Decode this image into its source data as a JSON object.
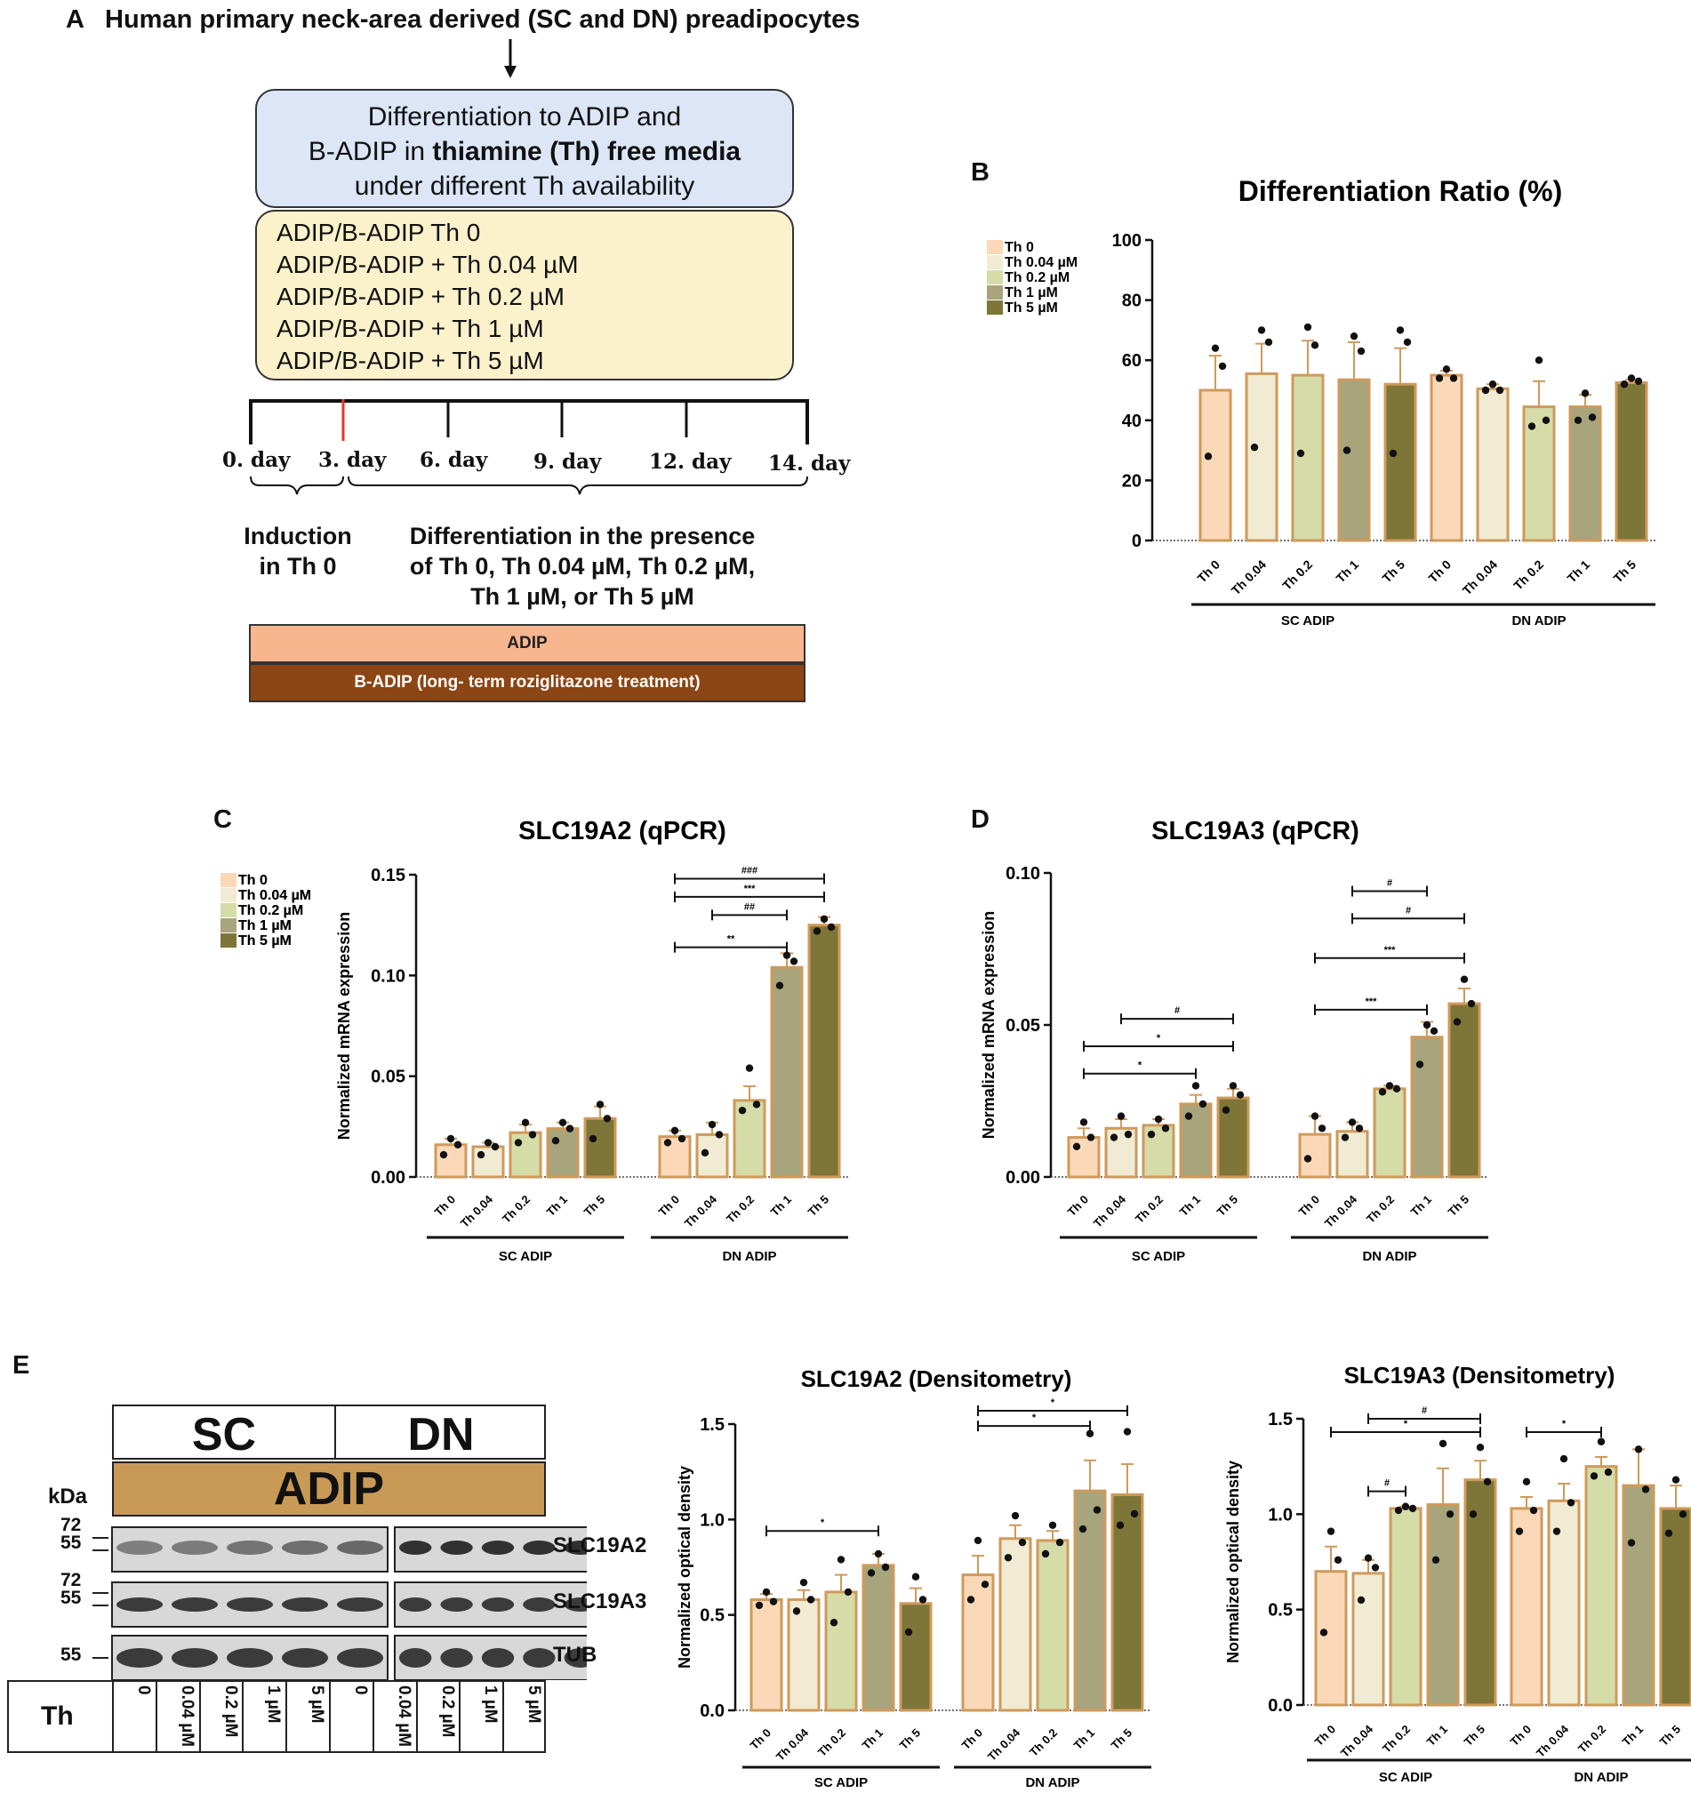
{
  "panelA": {
    "letter": "A",
    "title": "Human primary neck-area derived (SC and DN) preadipocytes",
    "blue_box": {
      "line1": "Differentiation to ADIP and",
      "line2_pre": "B-ADIP in ",
      "line2_bold": "thiamine (Th) free media",
      "line3": "under different Th availability"
    },
    "conditions": [
      "ADIP/B-ADIP Th 0",
      "ADIP/B-ADIP + Th 0.04 µM",
      "ADIP/B-ADIP + Th 0.2 µM",
      "ADIP/B-ADIP + Th 1 µM",
      "ADIP/B-ADIP + Th 5 µM"
    ],
    "days": [
      "0. day",
      "3. day",
      "6. day",
      "9. day",
      "12. day",
      "14. day"
    ],
    "induction": [
      "Induction",
      "in Th 0"
    ],
    "differentiation": [
      "Differentiation in the presence",
      "of Th 0, Th 0.04 µM, Th 0.2 µM,",
      "Th 1 µM, or Th 5 µM"
    ],
    "band_adip": "ADIP",
    "band_badip": "B-ADIP (long- term roziglitazone treatment)",
    "colors": {
      "blue": "#dce6f7",
      "yellow": "#fbf2cb",
      "adip": "#f7b68e",
      "badip": "#8c4514",
      "red_tick": "#e03a2a"
    }
  },
  "palette": [
    "#fbd9b8",
    "#f0ebd2",
    "#d5dca8",
    "#a8a47c",
    "#7e7538"
  ],
  "bar_outline": "#cf9a5b",
  "legend": [
    "Th 0",
    "Th 0.04 µM",
    "Th 0.2 µM",
    "Th 1 µM",
    "Th 5 µM"
  ],
  "chart_data": [
    {
      "id": "B",
      "letter": "B",
      "type": "bar",
      "title": "Differentiation Ratio (%)",
      "ylabel": "",
      "ylim": [
        0,
        100
      ],
      "yticks": [
        "0",
        "20",
        "40",
        "60",
        "80",
        "100"
      ],
      "categories": [
        "Th 0",
        "Th 0.04",
        "Th 0.2",
        "Th 1",
        "Th 5"
      ],
      "groups": [
        "SC  ADIP",
        "DN ADIP"
      ],
      "series": [
        {
          "name": "SC ADIP",
          "values": [
            50,
            55.5,
            55,
            53.5,
            52
          ],
          "errors": [
            11.5,
            10,
            11.5,
            12.5,
            12
          ],
          "points": [
            [
              64,
              58,
              28
            ],
            [
              70,
              66,
              31
            ],
            [
              71,
              65,
              29
            ],
            [
              68,
              63,
              30
            ],
            [
              70,
              66,
              29
            ]
          ]
        },
        {
          "name": "DN ADIP",
          "values": [
            55,
            50.5,
            44.5,
            44.5,
            52.5
          ],
          "errors": [
            1.5,
            1.5,
            8.5,
            4,
            1
          ],
          "points": [
            [
              57,
              54,
              54
            ],
            [
              52,
              50,
              50
            ],
            [
              60,
              40,
              38
            ],
            [
              49,
              41,
              40
            ],
            [
              54,
              53,
              52
            ]
          ]
        }
      ],
      "brackets": []
    },
    {
      "id": "C",
      "letter": "C",
      "type": "bar",
      "title": "SLC19A2 (qPCR)",
      "ylabel": "Normalized mRNA expression",
      "ylim": [
        0,
        0.15
      ],
      "yticks": [
        "0.00",
        "0.05",
        "0.10",
        "0.15"
      ],
      "categories": [
        "Th 0",
        "Th 0.04",
        "Th 0.2",
        "Th 1",
        "Th 5"
      ],
      "groups": [
        "SC ADIP",
        "DN ADIP"
      ],
      "series": [
        {
          "name": "SC ADIP",
          "values": [
            0.016,
            0.015,
            0.022,
            0.024,
            0.029
          ],
          "errors": [
            0.003,
            0.002,
            0.004,
            0.003,
            0.006
          ],
          "points": [
            [
              0.019,
              0.016,
              0.011
            ],
            [
              0.017,
              0.015,
              0.011
            ],
            [
              0.027,
              0.021,
              0.017
            ],
            [
              0.027,
              0.024,
              0.018
            ],
            [
              0.036,
              0.029,
              0.019
            ]
          ]
        },
        {
          "name": "DN ADIP",
          "values": [
            0.02,
            0.021,
            0.038,
            0.104,
            0.125
          ],
          "errors": [
            0.003,
            0.006,
            0.007,
            0.007,
            0.004
          ],
          "points": [
            [
              0.023,
              0.019,
              0.017
            ],
            [
              0.026,
              0.021,
              0.012
            ],
            [
              0.054,
              0.036,
              0.033
            ],
            [
              0.11,
              0.107,
              0.095
            ],
            [
              0.128,
              0.124,
              0.122
            ]
          ]
        }
      ],
      "brackets": [
        {
          "from": [
            1,
            0
          ],
          "to": [
            1,
            4
          ],
          "label": "###",
          "level": 0.148
        },
        {
          "from": [
            1,
            0
          ],
          "to": [
            1,
            4
          ],
          "label": "***",
          "level": 0.139
        },
        {
          "from": [
            1,
            1
          ],
          "to": [
            1,
            3
          ],
          "label": "##",
          "level": 0.13
        },
        {
          "from": [
            1,
            0
          ],
          "to": [
            1,
            3
          ],
          "label": "**",
          "level": 0.114
        }
      ]
    },
    {
      "id": "D",
      "letter": "D",
      "type": "bar",
      "title": "SLC19A3 (qPCR)",
      "ylabel": "Normalized mRNA expression",
      "ylim": [
        0,
        0.1
      ],
      "yticks": [
        "0.00",
        "0.05",
        "0.10"
      ],
      "categories": [
        "Th 0",
        "Th 0.04",
        "Th 0.2",
        "Th 1",
        "Th 5"
      ],
      "groups": [
        "SC ADIP",
        "DN ADIP"
      ],
      "series": [
        {
          "name": "SC ADIP",
          "values": [
            0.013,
            0.016,
            0.017,
            0.024,
            0.026
          ],
          "errors": [
            0.003,
            0.003,
            0.002,
            0.003,
            0.003
          ],
          "points": [
            [
              0.018,
              0.013,
              0.01
            ],
            [
              0.02,
              0.014,
              0.013
            ],
            [
              0.019,
              0.016,
              0.014
            ],
            [
              0.03,
              0.024,
              0.02
            ],
            [
              0.03,
              0.027,
              0.022
            ]
          ]
        },
        {
          "name": "DN ADIP",
          "values": [
            0.014,
            0.015,
            0.029,
            0.046,
            0.057
          ],
          "errors": [
            0.006,
            0.003,
            0.001,
            0.005,
            0.005
          ],
          "points": [
            [
              0.02,
              0.016,
              0.006
            ],
            [
              0.018,
              0.016,
              0.013
            ],
            [
              0.03,
              0.029,
              0.028
            ],
            [
              0.05,
              0.048,
              0.037
            ],
            [
              0.065,
              0.057,
              0.051
            ]
          ]
        }
      ],
      "brackets": [
        {
          "from": [
            1,
            1
          ],
          "to": [
            1,
            3
          ],
          "label": "#",
          "level": 0.094
        },
        {
          "from": [
            1,
            1
          ],
          "to": [
            1,
            4
          ],
          "label": "#",
          "level": 0.085
        },
        {
          "from": [
            1,
            0
          ],
          "to": [
            1,
            4
          ],
          "label": "***",
          "level": 0.072
        },
        {
          "from": [
            1,
            0
          ],
          "to": [
            1,
            3
          ],
          "label": "***",
          "level": 0.055
        },
        {
          "from": [
            0,
            1
          ],
          "to": [
            0,
            4
          ],
          "label": "#",
          "level": 0.052
        },
        {
          "from": [
            0,
            0
          ],
          "to": [
            0,
            4
          ],
          "label": "*",
          "level": 0.043
        },
        {
          "from": [
            0,
            0
          ],
          "to": [
            0,
            3
          ],
          "label": "*",
          "level": 0.034
        }
      ]
    },
    {
      "id": "E1",
      "letter": "",
      "type": "bar",
      "title": "SLC19A2 (Densitometry)",
      "ylabel": "Normalized optical density",
      "ylim": [
        0,
        1.5
      ],
      "yticks": [
        "0.0",
        "0.5",
        "1.0",
        "1.5"
      ],
      "categories": [
        "Th 0",
        "Th 0.04",
        "Th 0.2",
        "Th 1",
        "Th 5"
      ],
      "groups": [
        "SC ADIP",
        "DN ADIP"
      ],
      "series": [
        {
          "name": "SC ADIP",
          "values": [
            0.58,
            0.58,
            0.62,
            0.76,
            0.56
          ],
          "errors": [
            0.03,
            0.05,
            0.09,
            0.06,
            0.08
          ],
          "points": [
            [
              0.62,
              0.57,
              0.55
            ],
            [
              0.67,
              0.58,
              0.52
            ],
            [
              0.79,
              0.62,
              0.46
            ],
            [
              0.82,
              0.75,
              0.72
            ],
            [
              0.7,
              0.58,
              0.41
            ]
          ]
        },
        {
          "name": "DN ADIP",
          "values": [
            0.71,
            0.9,
            0.89,
            1.15,
            1.13
          ],
          "errors": [
            0.1,
            0.07,
            0.05,
            0.16,
            0.16
          ],
          "points": [
            [
              0.89,
              0.66,
              0.58
            ],
            [
              1.02,
              0.88,
              0.8
            ],
            [
              0.97,
              0.88,
              0.82
            ],
            [
              1.45,
              1.05,
              0.95
            ],
            [
              1.46,
              1.03,
              0.97
            ]
          ]
        }
      ],
      "brackets": [
        {
          "from": [
            1,
            0
          ],
          "to": [
            1,
            4
          ],
          "label": "*",
          "level": 1.57
        },
        {
          "from": [
            1,
            0
          ],
          "to": [
            1,
            3
          ],
          "label": "*",
          "level": 1.49
        },
        {
          "from": [
            0,
            0
          ],
          "to": [
            0,
            3
          ],
          "label": "*",
          "level": 0.94
        }
      ]
    },
    {
      "id": "E2",
      "letter": "",
      "type": "bar",
      "title": "SLC19A3 (Densitometry)",
      "ylabel": "Normalized optical density",
      "ylim": [
        0,
        1.5
      ],
      "yticks": [
        "0.0",
        "0.5",
        "1.0",
        "1.5"
      ],
      "categories": [
        "Th 0",
        "Th 0.04",
        "Th 0.2",
        "Th 1",
        "Th 5"
      ],
      "groups": [
        "SC ADIP",
        "DN ADIP"
      ],
      "series": [
        {
          "name": "SC ADIP",
          "values": [
            0.7,
            0.69,
            1.03,
            1.05,
            1.18
          ],
          "errors": [
            0.13,
            0.07,
            0.01,
            0.19,
            0.1
          ],
          "points": [
            [
              0.91,
              0.76,
              0.38
            ],
            [
              0.77,
              0.72,
              0.55
            ],
            [
              1.04,
              1.03,
              1.02
            ],
            [
              1.37,
              1.0,
              0.76
            ],
            [
              1.35,
              1.17,
              1.0
            ]
          ]
        },
        {
          "name": "DN ADIP",
          "values": [
            1.03,
            1.07,
            1.25,
            1.15,
            1.03
          ],
          "errors": [
            0.06,
            0.09,
            0.05,
            0.19,
            0.12
          ],
          "points": [
            [
              1.17,
              1.02,
              0.91
            ],
            [
              1.29,
              1.06,
              0.91
            ],
            [
              1.38,
              1.22,
              1.2
            ],
            [
              1.34,
              1.13,
              0.85
            ],
            [
              1.18,
              1.0,
              0.9
            ]
          ]
        }
      ],
      "brackets": [
        {
          "from": [
            0,
            1
          ],
          "to": [
            0,
            4
          ],
          "label": "#",
          "level": 1.5
        },
        {
          "from": [
            0,
            0
          ],
          "to": [
            0,
            4
          ],
          "label": "*",
          "level": 1.43
        },
        {
          "from": [
            1,
            0
          ],
          "to": [
            1,
            2
          ],
          "label": "*",
          "level": 1.43
        },
        {
          "from": [
            0,
            1
          ],
          "to": [
            0,
            2
          ],
          "label": "#",
          "level": 1.12
        }
      ]
    }
  ],
  "panelE": {
    "letter": "E",
    "blot": {
      "sc": "SC",
      "dn": "DN",
      "adip": "ADIP",
      "kda": "kDa",
      "rows": [
        {
          "label": "SLC19A2",
          "markers": [
            "72",
            "55"
          ]
        },
        {
          "label": "SLC19A3",
          "markers": [
            "72",
            "55"
          ]
        },
        {
          "label": "TUB",
          "markers": [
            "55"
          ]
        }
      ],
      "th_label": "Th",
      "lanes": [
        "0",
        "0.04 µM",
        "0.2 µM",
        "1 µM",
        "5 µM",
        "0",
        "0.04 µM",
        "0.2 µM",
        "1 µM",
        "5 µM"
      ],
      "adip_color": "#c99a56"
    }
  }
}
